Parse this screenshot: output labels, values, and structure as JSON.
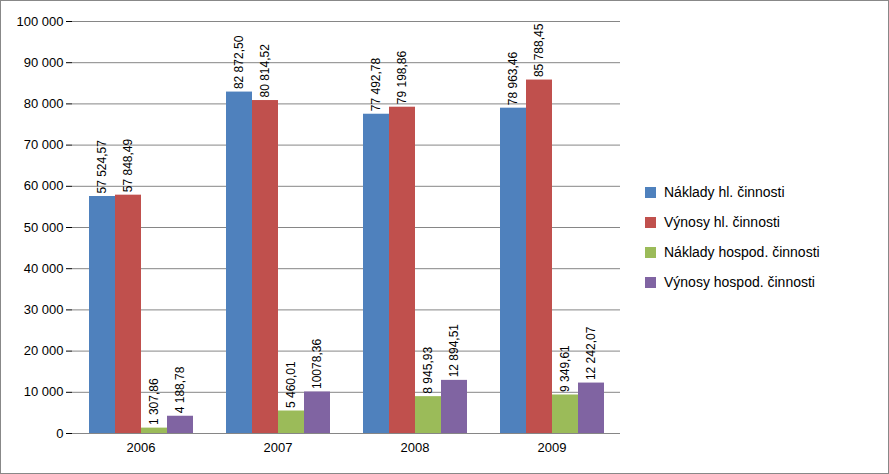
{
  "chart_data": {
    "type": "bar",
    "categories": [
      "2006",
      "2007",
      "2008",
      "2009"
    ],
    "series": [
      {
        "name": "Náklady hl. činnosti",
        "color": "#4F81BD",
        "values": [
          57524.57,
          82872.5,
          77492.78,
          78963.46
        ],
        "value_labels": [
          "57 524,57",
          "82 872,50",
          "77 492,78",
          "78 963,46"
        ]
      },
      {
        "name": "Výnosy hl. činnosti",
        "color": "#C0504D",
        "values": [
          57848.49,
          80814.52,
          79198.86,
          85788.45
        ],
        "value_labels": [
          "57 848,49",
          "80 814,52",
          "79 198,86",
          "85 788,45"
        ]
      },
      {
        "name": "Náklady hospod. činnosti",
        "color": "#9BBB59",
        "values": [
          1307.86,
          5460.01,
          8945.93,
          9349.61
        ],
        "value_labels": [
          "1 307,86",
          "5 460,01",
          "8 945,93",
          "9 349,61"
        ]
      },
      {
        "name": "Výnosy hospod. činnosti",
        "color": "#8064A2",
        "values": [
          4188.78,
          10078.36,
          12894.51,
          12242.07
        ],
        "value_labels": [
          "4 188,78",
          "10078,36",
          "12 894,51",
          "12 242,07"
        ]
      }
    ],
    "ylim": [
      0,
      100000
    ],
    "yticks": [
      0,
      {
        "value": 10000,
        "label": "10 000"
      },
      {
        "value": 20000,
        "label": "20 000"
      },
      {
        "value": 30000,
        "label": "30 000"
      },
      {
        "value": 40000,
        "label": "40 000"
      },
      {
        "value": 50000,
        "label": "50 000"
      },
      {
        "value": 60000,
        "label": "60 000"
      },
      {
        "value": 70000,
        "label": "70 000"
      },
      {
        "value": 80000,
        "label": "80 000"
      },
      {
        "value": 90000,
        "label": "90 000"
      },
      {
        "value": 100000,
        "label": "100 000"
      }
    ],
    "grid": true,
    "data_labels": true,
    "legend": "right"
  }
}
